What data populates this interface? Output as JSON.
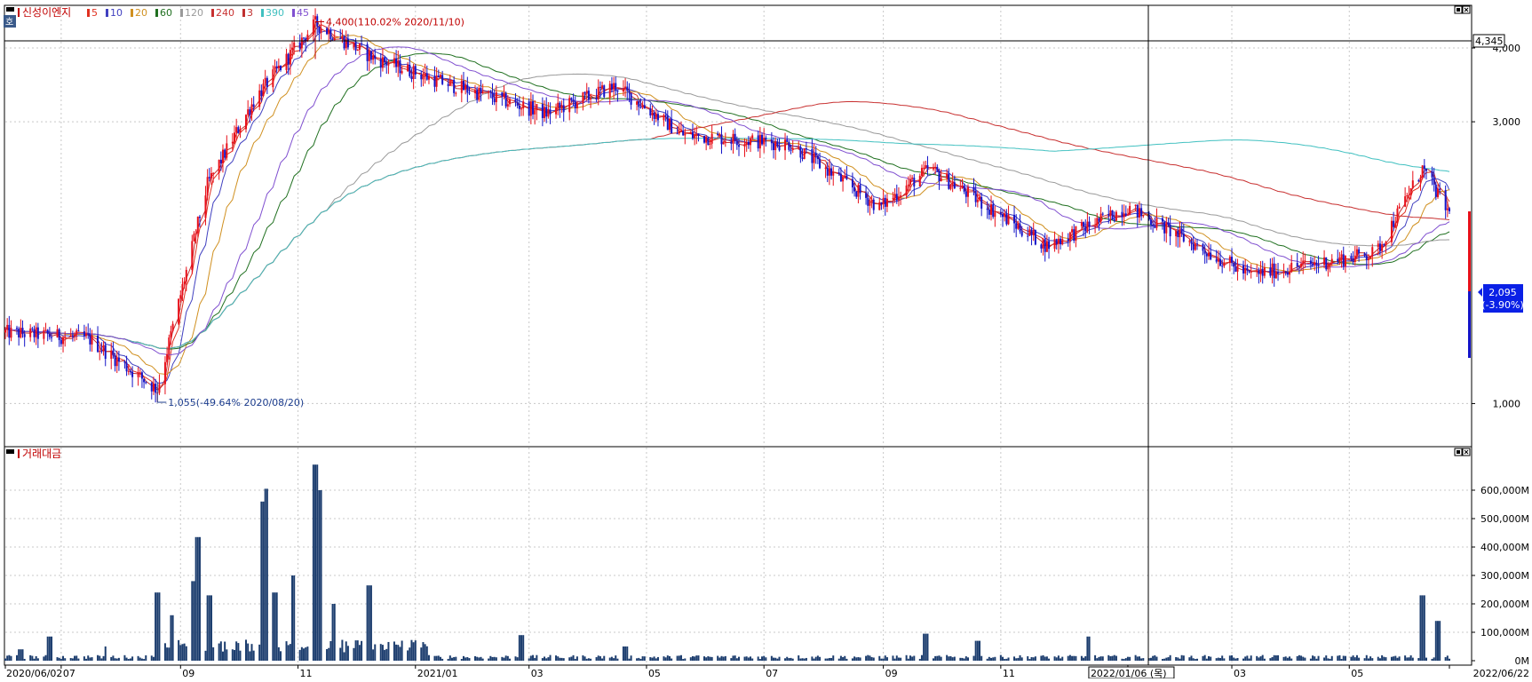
{
  "colors": {
    "up": "#e8101a",
    "down": "#1414c8",
    "border": "#000000",
    "grid": "#c8c8c8",
    "volume": "#1c3d6e",
    "price_badge": "#0a20e6",
    "legend_name": "#c00000",
    "ma": {
      "5": "#e03020",
      "10": "#4040c0",
      "20": "#d09020",
      "60": "#207020",
      "120": "#9a9a9a",
      "240": "#c83030",
      "3": "#c03030",
      "390": "#40c0c0",
      "45": "#8050d0"
    }
  },
  "icons": {
    "panel_menu": "panel-menu-icon",
    "window_buttons": "window-buttons-icon",
    "ho_tag": "호"
  },
  "price_panel": {
    "legend": {
      "name": "신성이엔지",
      "periods": [
        "5",
        "10",
        "20",
        "60",
        "120",
        "240",
        "3",
        "390",
        "45"
      ]
    },
    "ho_label": "호",
    "crosshair_price": "4,345",
    "current_price": "2,095",
    "current_change": "(-3.90%)",
    "high_annotation": "4,400(110.02% 2020/11/10)",
    "low_annotation": "1,055(-49.64% 2020/08/20)"
  },
  "volume_panel": {
    "legend": "거래대금"
  },
  "x_axis": {
    "labels": [
      "2020/06/02",
      "07",
      "09",
      "11",
      "2021/01",
      "03",
      "05",
      "07",
      "09",
      "11",
      "2022/01/06 (목)",
      "03",
      "05",
      "2022/06/22"
    ]
  },
  "chart_data": [
    {
      "type": "line",
      "subtype": "candlestick",
      "name": "신성이엔지",
      "y_scale": "log",
      "ylim": [
        860,
        4500
      ],
      "y_ticks": [
        1000,
        3000,
        4000
      ],
      "y_tick_labels": [
        "1,000",
        "3,000",
        "4,000"
      ],
      "x_range": [
        "2020/06/02",
        "2022/06/22"
      ],
      "key_points": [
        {
          "date": "2020/06/02",
          "close": 1320
        },
        {
          "date": "2020/07/15",
          "close": 1290
        },
        {
          "date": "2020/08/20",
          "close": 1055
        },
        {
          "date": "2020/09/15",
          "close": 2350
        },
        {
          "date": "2020/10/10",
          "close": 3300
        },
        {
          "date": "2020/11/10",
          "close": 4400
        },
        {
          "date": "2020/12/10",
          "close": 3850
        },
        {
          "date": "2021/01/15",
          "close": 3500
        },
        {
          "date": "2021/03/10",
          "close": 3100
        },
        {
          "date": "2021/04/15",
          "close": 3450
        },
        {
          "date": "2021/05/20",
          "close": 2850
        },
        {
          "date": "2021/07/15",
          "close": 2750
        },
        {
          "date": "2021/08/30",
          "close": 2150
        },
        {
          "date": "2021/09/25",
          "close": 2500
        },
        {
          "date": "2021/11/25",
          "close": 1850
        },
        {
          "date": "2022/01/06",
          "close": 2150
        },
        {
          "date": "2022/03/10",
          "close": 1650
        },
        {
          "date": "2022/05/15",
          "close": 1800
        },
        {
          "date": "2022/06/08",
          "close": 2500
        },
        {
          "date": "2022/06/22",
          "close": 2095
        }
      ],
      "annotations": [
        {
          "label": "4,400(110.02% 2020/11/10)",
          "value": 4400,
          "date": "2020/11/10"
        },
        {
          "label": "1,055(-49.64% 2020/08/20)",
          "value": 1055,
          "date": "2020/08/20"
        }
      ],
      "moving_averages": [
        "5",
        "10",
        "20",
        "60",
        "120",
        "240",
        "3",
        "390",
        "45"
      ],
      "grid": true
    },
    {
      "type": "bar",
      "name": "거래대금",
      "unit": "M",
      "ylim": [
        0,
        700000
      ],
      "y_ticks": [
        0,
        100000,
        200000,
        300000,
        400000,
        500000,
        600000
      ],
      "y_tick_labels": [
        "0M",
        "100,000M",
        "200,000M",
        "300,000M",
        "400,000M",
        "500,000M",
        "600,000M"
      ],
      "peaks": [
        {
          "date": "2020/06/10",
          "value": 40000
        },
        {
          "date": "2020/06/25",
          "value": 85000
        },
        {
          "date": "2020/07/25",
          "value": 50000
        },
        {
          "date": "2020/08/20",
          "value": 240000
        },
        {
          "date": "2020/08/28",
          "value": 160000
        },
        {
          "date": "2020/09/08",
          "value": 280000
        },
        {
          "date": "2020/09/10",
          "value": 435000
        },
        {
          "date": "2020/09/16",
          "value": 230000
        },
        {
          "date": "2020/10/14",
          "value": 560000
        },
        {
          "date": "2020/10/16",
          "value": 605000
        },
        {
          "date": "2020/10/20",
          "value": 240000
        },
        {
          "date": "2020/10/30",
          "value": 300000
        },
        {
          "date": "2020/11/10",
          "value": 690000
        },
        {
          "date": "2020/11/12",
          "value": 600000
        },
        {
          "date": "2020/11/20",
          "value": 200000
        },
        {
          "date": "2020/12/08",
          "value": 265000
        },
        {
          "date": "2021/02/25",
          "value": 90000
        },
        {
          "date": "2021/04/20",
          "value": 50000
        },
        {
          "date": "2021/09/23",
          "value": 95000
        },
        {
          "date": "2021/10/20",
          "value": 70000
        },
        {
          "date": "2021/12/17",
          "value": 85000
        },
        {
          "date": "2022/06/08",
          "value": 230000
        },
        {
          "date": "2022/06/16",
          "value": 140000
        },
        {
          "date": "2022/06/22",
          "value": 5000
        }
      ],
      "grid": true
    }
  ]
}
